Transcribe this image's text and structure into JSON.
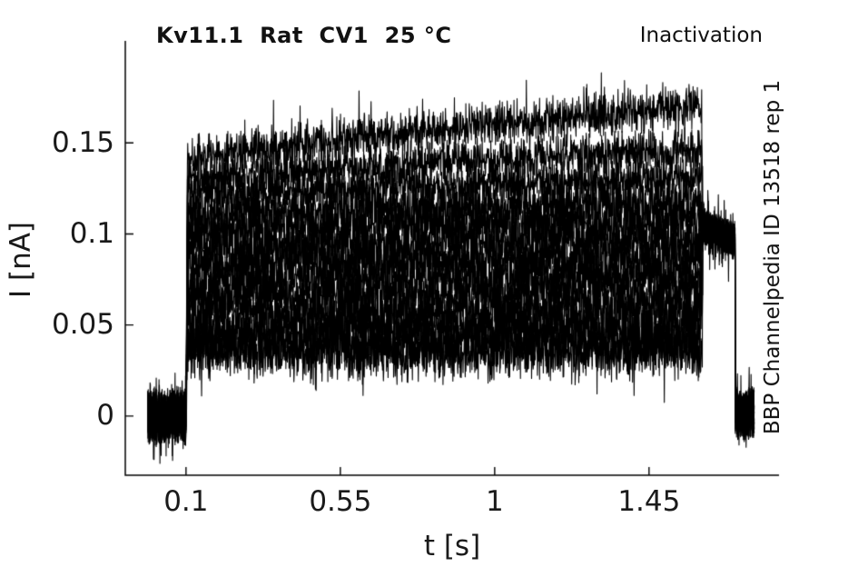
{
  "chart_data": {
    "type": "line",
    "title": "Kv11.1  Rat  CV1  25 °C",
    "annotation": "Inactivation",
    "side_label": "BBP Channelpedia ID 13518 rep 1",
    "xlabel": "t [s]",
    "ylabel": "I [nA]",
    "xlim": [
      -0.077,
      1.829
    ],
    "ylim": [
      -0.0325,
      0.206
    ],
    "x_ticks": {
      "values": [
        0.1,
        0.55,
        1.0,
        1.45
      ],
      "labels": [
        "0.1",
        "0.55",
        "1",
        "1.45"
      ]
    },
    "y_ticks": {
      "values": [
        0,
        0.05,
        0.1,
        0.15
      ],
      "labels": [
        "0",
        "0.05",
        "0.1",
        "0.15"
      ]
    },
    "grid": false,
    "legend": false,
    "colors": {
      "trace": "#000000",
      "axis": "#000000",
      "text": "#1a1a1a"
    },
    "protocol": {
      "n_sweeps": 13,
      "t_start": -0.012,
      "step_on_t": 0.1,
      "step_off_t": 1.603,
      "tail_end_t": 1.701,
      "t_end": 1.757,
      "baseline_level": 0,
      "tail_level_start": 0.105,
      "tail_level_end": 0.097,
      "post_level": 0.002,
      "sweeps": [
        {
          "level_start": 0.14,
          "level_end": 0.17
        },
        {
          "level_start": 0.13,
          "level_end": 0.146
        },
        {
          "level_start": 0.121,
          "level_end": 0.131
        },
        {
          "level_start": 0.111,
          "level_end": 0.117
        },
        {
          "level_start": 0.102,
          "level_end": 0.107
        },
        {
          "level_start": 0.093,
          "level_end": 0.097
        },
        {
          "level_start": 0.084,
          "level_end": 0.087
        },
        {
          "level_start": 0.075,
          "level_end": 0.077
        },
        {
          "level_start": 0.066,
          "level_end": 0.068
        },
        {
          "level_start": 0.057,
          "level_end": 0.058
        },
        {
          "level_start": 0.048,
          "level_end": 0.049
        },
        {
          "level_start": 0.041,
          "level_end": 0.041
        },
        {
          "level_start": 0.035,
          "level_end": 0.035
        }
      ],
      "noise": {
        "baseline": 0.012,
        "step": 0.013,
        "step_top": 0.01,
        "tail": 0.0075,
        "post": 0.011,
        "spike_prob": 0.04,
        "spike_max": 0.009
      }
    },
    "sample_dt": 0.0009,
    "seed": 42
  }
}
